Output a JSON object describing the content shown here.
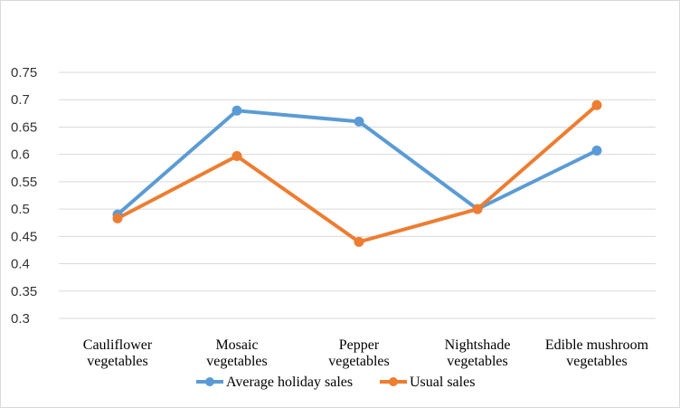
{
  "chart_data": {
    "type": "line",
    "categories": [
      [
        "Cauliflower",
        "vegetables"
      ],
      [
        "Mosaic",
        "vegetables"
      ],
      [
        "Pepper",
        "vegetables"
      ],
      [
        "Nightshade",
        "vegetables"
      ],
      [
        "Edible mushroom",
        "vegetables"
      ]
    ],
    "yticks": [
      "0.3",
      "0.35",
      "0.4",
      "0.45",
      "0.5",
      "0.55",
      "0.6",
      "0.65",
      "0.7",
      "0.75"
    ],
    "ylim": [
      0.3,
      0.75
    ],
    "grid": true,
    "legend_position": "bottom",
    "series": [
      {
        "name": "Average holiday sales",
        "color": "#5b9bd5",
        "values": [
          0.49,
          0.68,
          0.66,
          0.5,
          0.607
        ]
      },
      {
        "name": "Usual sales",
        "color": "#ed7d31",
        "values": [
          0.483,
          0.597,
          0.44,
          0.5,
          0.69
        ]
      }
    ]
  }
}
